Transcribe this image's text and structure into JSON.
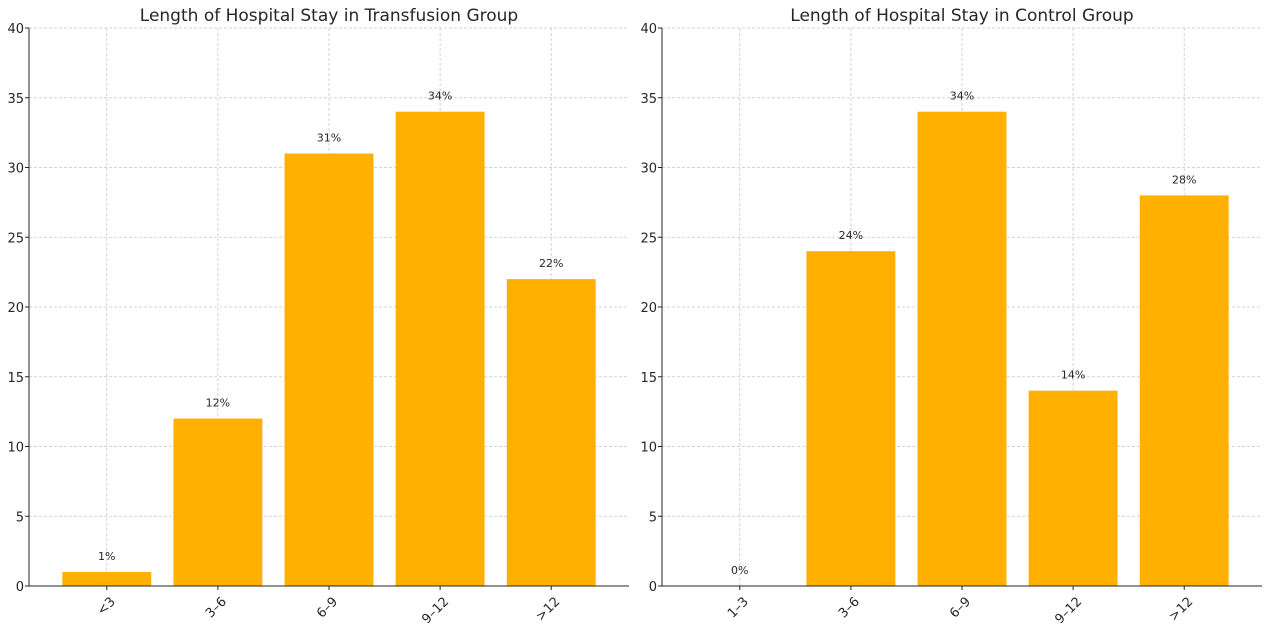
{
  "figure": {
    "colors": {
      "bar": "#FFB000",
      "grid": "#c8c8c8",
      "axis": "#262626"
    }
  },
  "chart_data": [
    {
      "type": "bar",
      "title": "Length of Hospital Stay in Transfusion Group",
      "xlabel": "",
      "ylabel": "",
      "categories": [
        "<3",
        "3–6",
        "6–9",
        "9–12",
        ">12"
      ],
      "values": [
        1,
        12,
        31,
        34,
        22
      ],
      "data_labels": [
        "1%",
        "12%",
        "31%",
        "34%",
        "22%"
      ],
      "ylim": [
        0,
        40
      ],
      "yticks": [
        0,
        5,
        10,
        15,
        20,
        25,
        30,
        35,
        40
      ],
      "grid": true
    },
    {
      "type": "bar",
      "title": "Length of Hospital Stay in Control Group",
      "xlabel": "",
      "ylabel": "",
      "categories": [
        "1–3",
        "3–6",
        "6–9",
        "9–12",
        ">12"
      ],
      "values": [
        0,
        24,
        34,
        14,
        28
      ],
      "data_labels": [
        "0%",
        "24%",
        "34%",
        "14%",
        "28%"
      ],
      "ylim": [
        0,
        40
      ],
      "yticks": [
        0,
        5,
        10,
        15,
        20,
        25,
        30,
        35,
        40
      ],
      "grid": true
    }
  ]
}
